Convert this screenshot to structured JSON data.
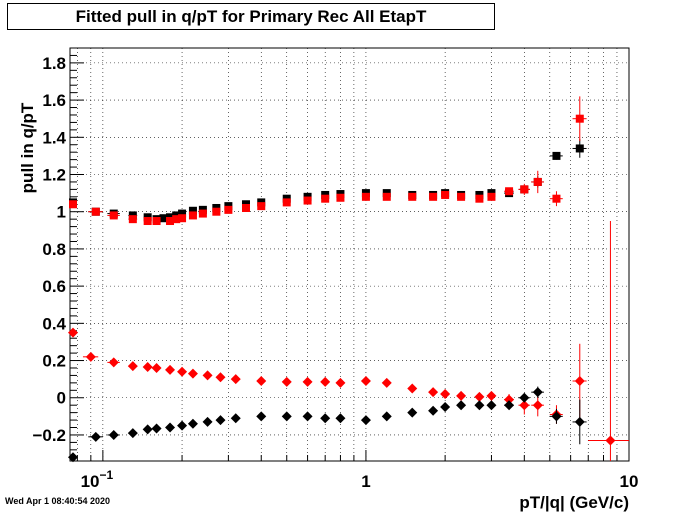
{
  "title": "Fitted pull in q/pT for Primary Rec All EtapT",
  "timestamp": "Wed Apr  1 08:40:54 2020",
  "chart_data": {
    "type": "scatter",
    "title": "Fitted pull in q/pT for Primary Rec All EtapT",
    "xlabel": "pT/|q| (GeV/c)",
    "ylabel": "pull in q/pT",
    "xscale": "log",
    "xlim": [
      0.075,
      10
    ],
    "ylim": [
      -0.34,
      1.88
    ],
    "grid": true,
    "yticks": [
      {
        "v": -0.2,
        "label": "−0.2"
      },
      {
        "v": 0,
        "label": "0"
      },
      {
        "v": 0.2,
        "label": "0.2"
      },
      {
        "v": 0.4,
        "label": "0.4"
      },
      {
        "v": 0.6,
        "label": "0.6"
      },
      {
        "v": 0.8,
        "label": "0.8"
      },
      {
        "v": 1,
        "label": "1"
      },
      {
        "v": 1.2,
        "label": "1.2"
      },
      {
        "v": 1.4,
        "label": "1.4"
      },
      {
        "v": 1.6,
        "label": "1.6"
      },
      {
        "v": 1.8,
        "label": "1.8"
      }
    ],
    "xticks": [
      {
        "v": 0.1,
        "base": "10",
        "exp": "−1"
      },
      {
        "v": 1,
        "base": "1",
        "exp": ""
      },
      {
        "v": 10,
        "base": "10",
        "exp": ""
      }
    ],
    "series": [
      {
        "marker": "square",
        "color": "#000000",
        "points": [
          [
            0.077,
            1.05,
            0,
            0.02
          ],
          [
            0.094,
            1.0,
            0.006,
            0.01
          ],
          [
            0.11,
            0.99,
            0.006,
            0.01
          ],
          [
            0.13,
            0.98,
            0.005,
            0.01
          ],
          [
            0.148,
            0.97,
            0.005,
            0.01
          ],
          [
            0.16,
            0.96,
            0,
            0.01
          ],
          [
            0.17,
            0.965,
            0,
            0.01
          ],
          [
            0.18,
            0.97,
            0,
            0.01
          ],
          [
            0.19,
            0.98,
            0,
            0.01
          ],
          [
            0.2,
            0.99,
            0,
            0.01
          ],
          [
            0.22,
            1.005,
            0,
            0.01
          ],
          [
            0.24,
            1.01,
            0,
            0.01
          ],
          [
            0.27,
            1.02,
            0,
            0.01
          ],
          [
            0.3,
            1.03,
            0,
            0.01
          ],
          [
            0.35,
            1.04,
            0,
            0.01
          ],
          [
            0.4,
            1.05,
            0,
            0.01
          ],
          [
            0.5,
            1.07,
            0,
            0.01
          ],
          [
            0.6,
            1.08,
            0,
            0.01
          ],
          [
            0.7,
            1.09,
            0,
            0.01
          ],
          [
            0.8,
            1.095,
            0,
            0.01
          ],
          [
            1.0,
            1.1,
            0,
            0.01
          ],
          [
            1.2,
            1.1,
            0,
            0.01
          ],
          [
            1.5,
            1.09,
            0,
            0.01
          ],
          [
            1.8,
            1.09,
            0,
            0.01
          ],
          [
            2.0,
            1.1,
            0,
            0.01
          ],
          [
            2.3,
            1.09,
            0,
            0.01
          ],
          [
            2.7,
            1.09,
            0,
            0.01
          ],
          [
            3.0,
            1.1,
            0,
            0.01
          ],
          [
            3.5,
            1.1,
            0.15,
            0.02
          ],
          [
            4.0,
            1.12,
            0.2,
            0.02
          ],
          [
            4.5,
            1.16,
            0.25,
            0.03
          ],
          [
            5.3,
            1.3,
            0.3,
            0.02
          ],
          [
            6.5,
            1.34,
            0.4,
            0.05
          ]
        ]
      },
      {
        "marker": "square",
        "color": "#ff0000",
        "points": [
          [
            0.077,
            1.04,
            0,
            0.02
          ],
          [
            0.094,
            1.0,
            0.006,
            0.01
          ],
          [
            0.11,
            0.98,
            0.006,
            0.01
          ],
          [
            0.13,
            0.96,
            0.005,
            0.01
          ],
          [
            0.148,
            0.95,
            0.005,
            0.01
          ],
          [
            0.16,
            0.95,
            0,
            0.01
          ],
          [
            0.18,
            0.95,
            0,
            0.01
          ],
          [
            0.19,
            0.96,
            0,
            0.01
          ],
          [
            0.2,
            0.965,
            0,
            0.01
          ],
          [
            0.22,
            0.98,
            0,
            0.01
          ],
          [
            0.24,
            0.99,
            0,
            0.01
          ],
          [
            0.27,
            1.0,
            0,
            0.01
          ],
          [
            0.3,
            1.01,
            0,
            0.01
          ],
          [
            0.35,
            1.02,
            0,
            0.01
          ],
          [
            0.4,
            1.03,
            0,
            0.01
          ],
          [
            0.5,
            1.05,
            0,
            0.01
          ],
          [
            0.6,
            1.06,
            0,
            0.01
          ],
          [
            0.7,
            1.07,
            0,
            0.01
          ],
          [
            0.8,
            1.075,
            0,
            0.01
          ],
          [
            1.0,
            1.08,
            0,
            0.01
          ],
          [
            1.2,
            1.08,
            0,
            0.01
          ],
          [
            1.5,
            1.08,
            0,
            0.01
          ],
          [
            1.8,
            1.08,
            0,
            0.01
          ],
          [
            2.0,
            1.09,
            0,
            0.01
          ],
          [
            2.3,
            1.08,
            0,
            0.01
          ],
          [
            2.7,
            1.07,
            0,
            0.01
          ],
          [
            3.0,
            1.08,
            0,
            0.01
          ],
          [
            3.5,
            1.11,
            0.15,
            0.02
          ],
          [
            4.0,
            1.12,
            0.2,
            0.03
          ],
          [
            4.5,
            1.16,
            0.25,
            0.06
          ],
          [
            5.3,
            1.07,
            0.3,
            0.04
          ],
          [
            6.5,
            1.5,
            0.4,
            0.12
          ]
        ]
      },
      {
        "marker": "diamond",
        "color": "#ff0000",
        "points": [
          [
            0.077,
            0.35,
            0,
            0.01
          ],
          [
            0.09,
            0.22,
            0.006,
            0.01
          ],
          [
            0.11,
            0.19,
            0.006,
            0.01
          ],
          [
            0.13,
            0.17,
            0.005,
            0.01
          ],
          [
            0.148,
            0.165,
            0.005,
            0.01
          ],
          [
            0.16,
            0.16,
            0,
            0.01
          ],
          [
            0.18,
            0.15,
            0,
            0.01
          ],
          [
            0.2,
            0.14,
            0,
            0.01
          ],
          [
            0.22,
            0.13,
            0,
            0.01
          ],
          [
            0.25,
            0.12,
            0,
            0.01
          ],
          [
            0.28,
            0.11,
            0,
            0.01
          ],
          [
            0.32,
            0.1,
            0,
            0.01
          ],
          [
            0.4,
            0.09,
            0,
            0.01
          ],
          [
            0.5,
            0.085,
            0,
            0.01
          ],
          [
            0.6,
            0.085,
            0,
            0.01
          ],
          [
            0.7,
            0.085,
            0,
            0.01
          ],
          [
            0.8,
            0.08,
            0,
            0.01
          ],
          [
            1.0,
            0.09,
            0,
            0.01
          ],
          [
            1.2,
            0.08,
            0,
            0.01
          ],
          [
            1.5,
            0.05,
            0,
            0.01
          ],
          [
            1.8,
            0.03,
            0,
            0.01
          ],
          [
            2.0,
            0.02,
            0,
            0.01
          ],
          [
            2.3,
            0.01,
            0,
            0.01
          ],
          [
            2.7,
            0.005,
            0,
            0.01
          ],
          [
            3.0,
            0.01,
            0,
            0.01
          ],
          [
            3.5,
            -0.01,
            0.15,
            0.03
          ],
          [
            4.0,
            -0.04,
            0.2,
            0.05
          ],
          [
            4.5,
            -0.04,
            0.25,
            0.06
          ],
          [
            5.3,
            -0.09,
            0.3,
            0.05
          ],
          [
            6.5,
            0.09,
            0.4,
            0.2
          ],
          [
            8.5,
            -0.23,
            1.5,
            1.18
          ]
        ]
      },
      {
        "marker": "diamond",
        "color": "#000000",
        "points": [
          [
            0.077,
            -0.32,
            0,
            0.01
          ],
          [
            0.094,
            -0.21,
            0.006,
            0.01
          ],
          [
            0.11,
            -0.2,
            0.006,
            0.01
          ],
          [
            0.13,
            -0.19,
            0.005,
            0.01
          ],
          [
            0.148,
            -0.17,
            0.005,
            0.01
          ],
          [
            0.16,
            -0.165,
            0,
            0.01
          ],
          [
            0.18,
            -0.16,
            0,
            0.01
          ],
          [
            0.2,
            -0.15,
            0,
            0.01
          ],
          [
            0.22,
            -0.14,
            0,
            0.01
          ],
          [
            0.25,
            -0.13,
            0,
            0.01
          ],
          [
            0.28,
            -0.12,
            0,
            0.01
          ],
          [
            0.32,
            -0.11,
            0,
            0.01
          ],
          [
            0.4,
            -0.1,
            0,
            0.01
          ],
          [
            0.5,
            -0.1,
            0,
            0.01
          ],
          [
            0.6,
            -0.1,
            0,
            0.01
          ],
          [
            0.7,
            -0.11,
            0,
            0.01
          ],
          [
            0.8,
            -0.11,
            0,
            0.01
          ],
          [
            1.0,
            -0.12,
            0,
            0.01
          ],
          [
            1.2,
            -0.1,
            0,
            0.01
          ],
          [
            1.5,
            -0.08,
            0,
            0.01
          ],
          [
            1.8,
            -0.07,
            0,
            0.01
          ],
          [
            2.0,
            -0.05,
            0,
            0.01
          ],
          [
            2.3,
            -0.04,
            0,
            0.01
          ],
          [
            2.7,
            -0.04,
            0,
            0.01
          ],
          [
            3.0,
            -0.04,
            0,
            0.01
          ],
          [
            3.5,
            -0.04,
            0.15,
            0.02
          ],
          [
            4.0,
            0.0,
            0.2,
            0.02
          ],
          [
            4.5,
            0.03,
            0.25,
            0.03
          ],
          [
            5.3,
            -0.1,
            0.3,
            0.04
          ],
          [
            6.5,
            -0.13,
            0.4,
            0.12
          ]
        ]
      }
    ]
  }
}
